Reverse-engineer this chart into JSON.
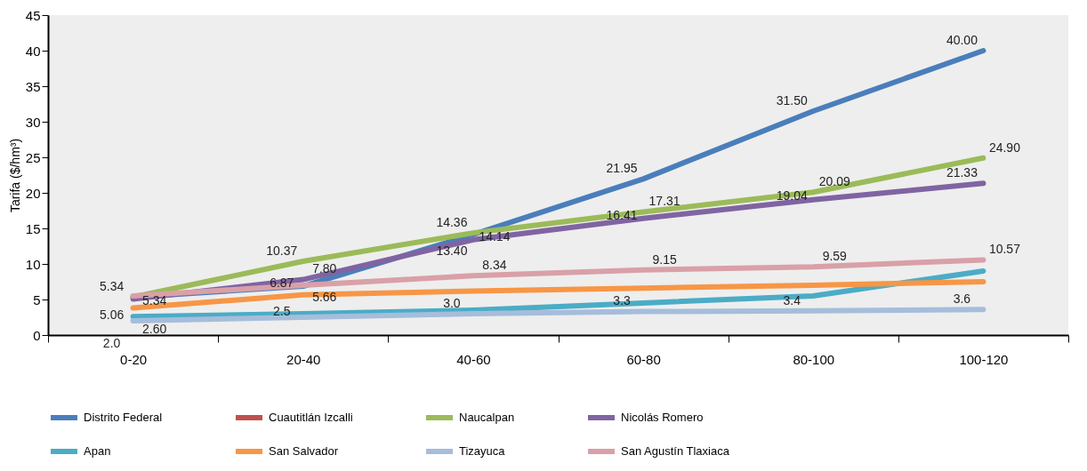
{
  "chart_data": {
    "type": "line",
    "ylabel": "Tarifa ($/hm³)",
    "categories": [
      "0-20",
      "20-40",
      "40-60",
      "60-80",
      "80-100",
      "100-120"
    ],
    "ylim": [
      0,
      45
    ],
    "yticks": [
      0,
      5,
      10,
      15,
      20,
      25,
      30,
      35,
      40,
      45
    ],
    "legend": "bottom",
    "series": [
      {
        "name": "Distrito Federal",
        "color": "#4a7ebb",
        "values": [
          5.34,
          6.87,
          14.14,
          21.95,
          31.5,
          40.0
        ],
        "value_labels": [
          "5.34",
          "6.87",
          "14.14",
          "21.95",
          "31.50",
          "40.00"
        ]
      },
      {
        "name": "Cuautitlán Izcalli",
        "color": "#c0504d",
        "values": [
          null,
          null,
          null,
          null,
          null,
          null
        ]
      },
      {
        "name": "Naucalpan",
        "color": "#9bbb59",
        "values": [
          5.34,
          10.37,
          14.36,
          17.31,
          20.09,
          24.9
        ],
        "value_labels": [
          "5.34",
          "10.37",
          "14.36",
          "17.31",
          "20.09",
          "24.90"
        ]
      },
      {
        "name": "Nicolás Romero",
        "color": "#8064a2",
        "values": [
          5.06,
          7.8,
          13.4,
          16.41,
          19.04,
          21.33
        ],
        "value_labels": [
          "5.06",
          "7.80",
          "13.40",
          "16.41",
          "19.04",
          "21.33"
        ]
      },
      {
        "name": "Apan",
        "color": "#4bacc6",
        "values": [
          2.6,
          3.0,
          3.5,
          4.5,
          5.5,
          9.0
        ],
        "value_labels": [
          "2.60",
          null,
          null,
          null,
          null,
          null
        ]
      },
      {
        "name": "San Salvador",
        "color": "#f79646",
        "values": [
          3.8,
          5.66,
          6.2,
          6.6,
          7.0,
          7.5
        ],
        "value_labels": [
          null,
          "5.66",
          null,
          null,
          null,
          null
        ]
      },
      {
        "name": "Tizayuca",
        "color": "#a6bddb",
        "values": [
          2.0,
          2.5,
          3.0,
          3.3,
          3.4,
          3.6
        ],
        "value_labels": [
          "2.0",
          "2.5",
          "3.0",
          "3.3",
          "3.4",
          "3.6"
        ]
      },
      {
        "name": "San Agustín Tlaxiaca",
        "color": "#d9a0a8",
        "values": [
          5.5,
          7.0,
          8.34,
          9.15,
          9.59,
          10.57
        ],
        "value_labels": [
          null,
          null,
          "8.34",
          "9.15",
          "9.59",
          "10.57"
        ]
      }
    ]
  }
}
